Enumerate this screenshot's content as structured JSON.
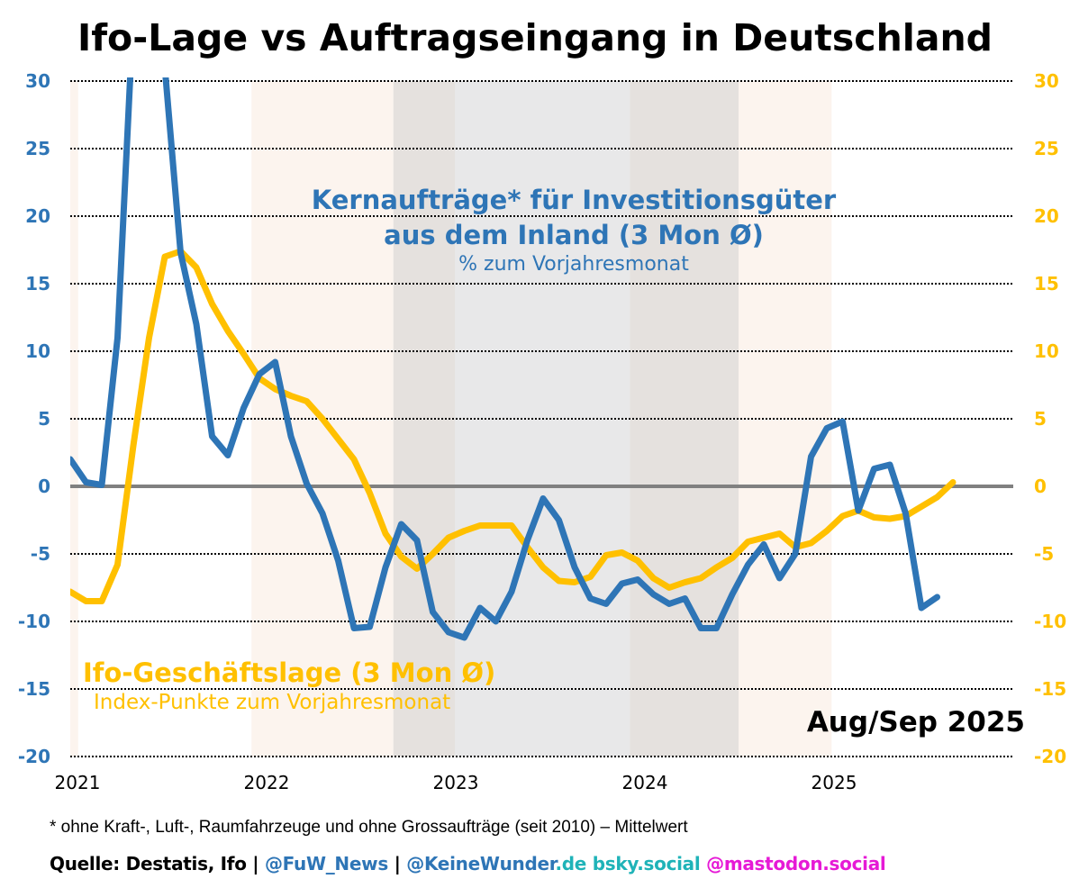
{
  "title": "Ifo-Lage vs Auftragseingang in Deutschland",
  "annotations": {
    "blue_title_line1": "Kernaufträge* für Investitionsgüter",
    "blue_title_line2": "aus dem Inland (3 Mon Ø)",
    "blue_subtitle": "% zum Vorjahresmonat",
    "yellow_title": "Ifo-Geschäftslage (3 Mon Ø)",
    "yellow_subtitle": "Index-Punkte zum Vorjahresmonat",
    "date_label": "Aug/Sep 2025"
  },
  "footnote": "* ohne Kraft-, Luft-, Raumfahrzeuge und ohne Grossaufträge (seit 2010) – Mittelwert",
  "source": {
    "prefix": "Quelle: Destatis, Ifo | ",
    "fuw": "@FuW_News",
    "sep": " | ",
    "kw": "@KeineWunder",
    "kw_de": ".de bsky.social",
    "mastodon": " @mastodon.social"
  },
  "colors": {
    "blue": "#2e75b6",
    "yellow": "#ffc000",
    "teal": "#1fb3b8",
    "magenta": "#e61ad6",
    "zero": "#808080"
  },
  "chart_data": {
    "type": "line",
    "title": "Ifo-Lage vs Auftragseingang in Deutschland",
    "x_start": "2021-01",
    "x_unit": "month",
    "x_tick_labels": [
      "2021",
      "2022",
      "2023",
      "2024",
      "2025"
    ],
    "x_tick_months": [
      0,
      12,
      24,
      36,
      48
    ],
    "x_range_months": [
      0,
      59.8
    ],
    "ylim": [
      -20,
      30
    ],
    "y_ticks": [
      30,
      25,
      20,
      15,
      10,
      5,
      0,
      -5,
      -10,
      -15,
      -20
    ],
    "y2lim": [
      -20,
      30
    ],
    "grid": "horizontal dotted",
    "shaded_periods": [
      {
        "from": 0,
        "to": 0.5,
        "color": "#fcf4ee"
      },
      {
        "from": 11.5,
        "to": 20.5,
        "color": "#fcf4ee"
      },
      {
        "from": 20.5,
        "to": 24.4,
        "color": "#e5e1de"
      },
      {
        "from": 24.4,
        "to": 35.5,
        "color": "#e8e8e9"
      },
      {
        "from": 35.5,
        "to": 42.4,
        "color": "#e5e1de"
      },
      {
        "from": 42.4,
        "to": 48.3,
        "color": "#fcf4ee"
      }
    ],
    "series": [
      {
        "name": "Kernaufträge Investitionsgüter Inland (3 Mon Ø), % zum Vorjahresmonat",
        "axis": "left",
        "color": "#2e75b6",
        "values": [
          2.0,
          0.3,
          0.1,
          11.0,
          35,
          38,
          31,
          17.3,
          12.0,
          3.7,
          2.3,
          5.8,
          8.3,
          9.2,
          3.7,
          0.2,
          -2.0,
          -5.5,
          -10.5,
          -10.4,
          -6.0,
          -2.8,
          -4.0,
          -9.3,
          -10.8,
          -11.2,
          -9.0,
          -10.0,
          -7.8,
          -4.0,
          -0.9,
          -2.5,
          -6.0,
          -8.3,
          -8.7,
          -7.2,
          -6.9,
          -8.0,
          -8.7,
          -8.3,
          -10.5,
          -10.5,
          -8.0,
          -5.8,
          -4.3,
          -6.8,
          -5.0,
          2.2,
          4.3,
          4.8,
          -1.8,
          1.3,
          1.6,
          -2.0,
          -9.0,
          -8.2
        ]
      },
      {
        "name": "Ifo-Geschäftslage (3 Mon Ø), Index-Punkte zum Vorjahresmonat",
        "axis": "right",
        "color": "#ffc000",
        "values": [
          -7.8,
          -8.5,
          -8.5,
          -5.8,
          3.0,
          11.0,
          17.0,
          17.4,
          16.2,
          13.5,
          11.5,
          9.8,
          8.0,
          7.2,
          6.7,
          6.3,
          5.0,
          3.5,
          2.0,
          -0.5,
          -3.5,
          -5.2,
          -6.1,
          -5.0,
          -3.8,
          -3.3,
          -2.9,
          -2.9,
          -2.9,
          -4.5,
          -6.0,
          -7.0,
          -7.1,
          -6.7,
          -5.1,
          -4.9,
          -5.5,
          -6.8,
          -7.5,
          -7.1,
          -6.8,
          -6.0,
          -5.3,
          -4.1,
          -3.8,
          -3.5,
          -4.5,
          -4.2,
          -3.3,
          -2.2,
          -1.8,
          -2.3,
          -2.4,
          -2.2,
          -1.5,
          -0.8,
          0.3
        ]
      }
    ]
  }
}
